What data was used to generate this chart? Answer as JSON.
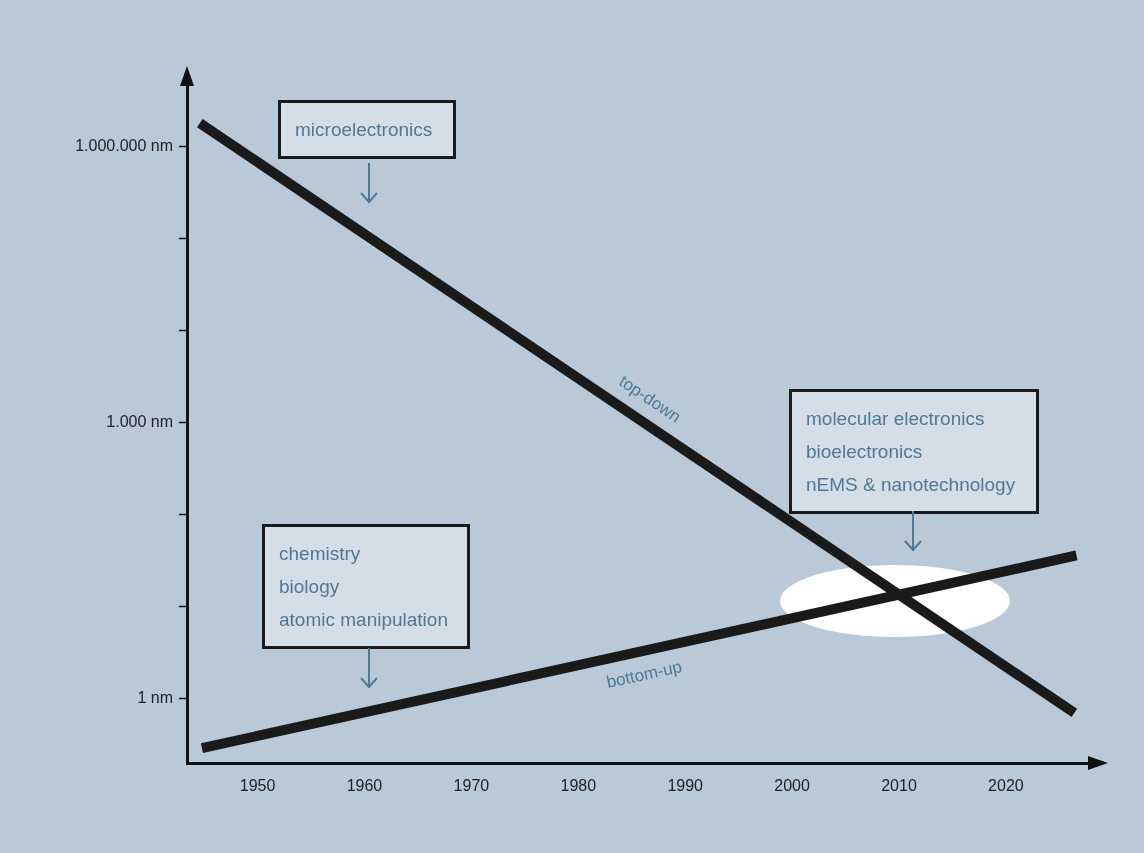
{
  "chart_data": {
    "type": "line",
    "log": "y",
    "grid": false,
    "legend": false,
    "marker": "none",
    "line_style": "solid",
    "xlim": [
      1943.4,
      2028.8
    ],
    "xticks": [
      1950,
      1960,
      1970,
      1980,
      1990,
      2000,
      2010,
      2020
    ],
    "ylim": [
      0.2,
      6000000
    ],
    "yticks": [
      {
        "value": 1,
        "label": "1 nm"
      },
      {
        "value": 10,
        "label": null
      },
      {
        "value": 100,
        "label": null
      },
      {
        "value": 1000,
        "label": "1.000 nm"
      },
      {
        "value": 10000,
        "label": null
      },
      {
        "value": 100000,
        "label": null
      },
      {
        "value": 1000000,
        "label": "1.000.000 nm"
      }
    ],
    "series": [
      {
        "name": "top-down",
        "color": "#1a1a1a",
        "x": [
          1944.6,
          2026.4
        ],
        "values": [
          1800000,
          0.7
        ]
      },
      {
        "name": "bottom-up",
        "color": "#1a1a1a",
        "x": [
          1944.8,
          2026.6
        ],
        "values": [
          0.29,
          36
        ]
      }
    ],
    "annotations": [
      "microelectronics",
      "molecular electronics\nbioelectronics\nnEMS & nanotechnology",
      "chemistry\nbiology\natomic manipulation"
    ]
  }
}
